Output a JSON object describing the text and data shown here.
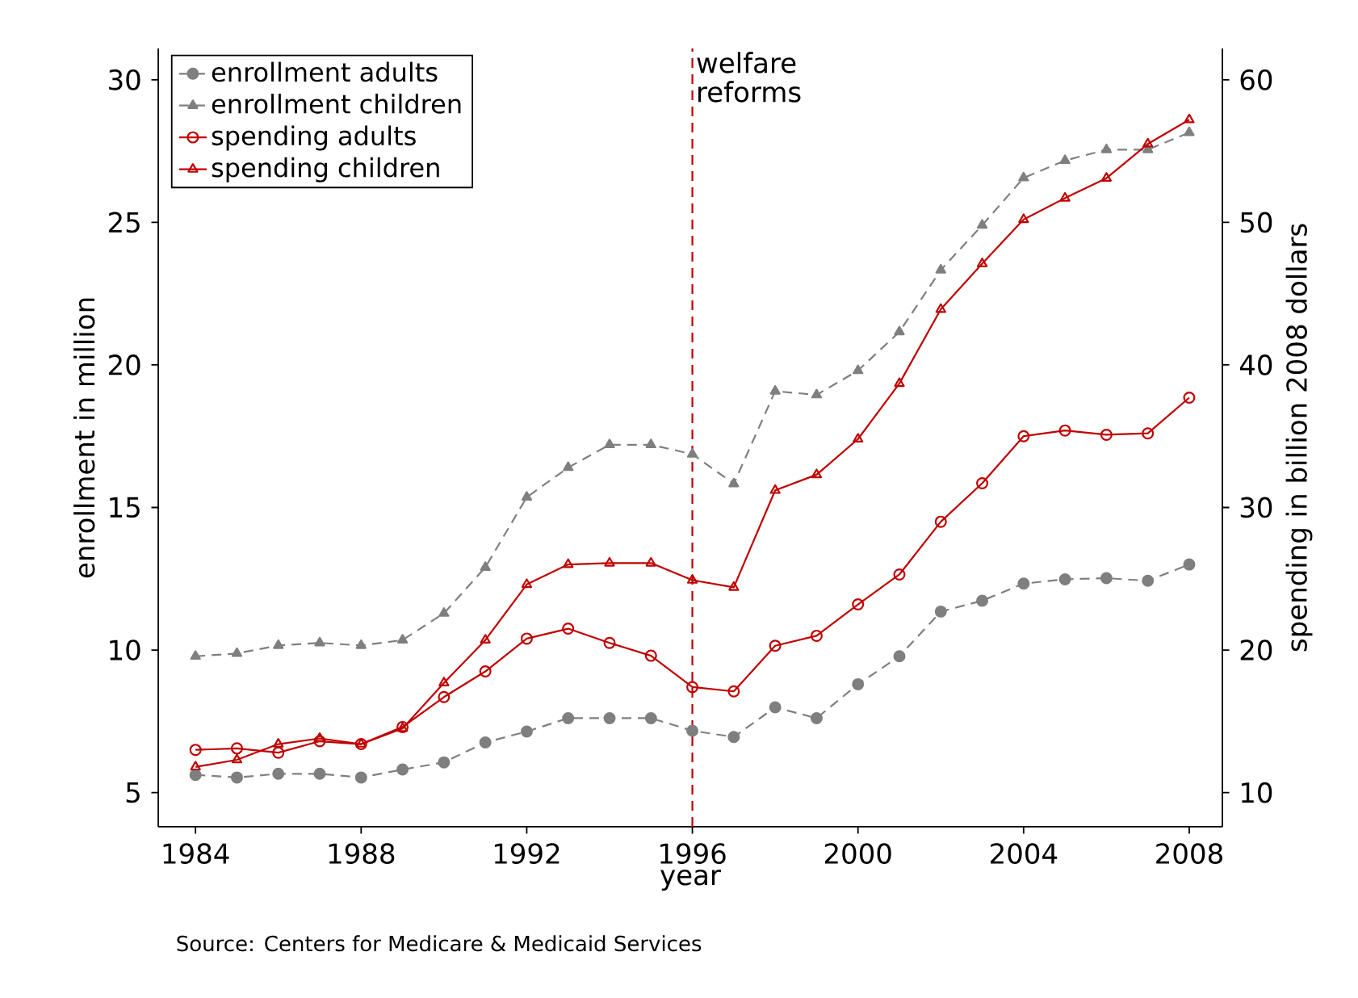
{
  "chart_data": {
    "type": "line",
    "xlabel": "year",
    "ylabel": "enrollment in million",
    "y2label": "spending in billion 2008 dollars",
    "x": [
      1984,
      1985,
      1986,
      1987,
      1988,
      1989,
      1990,
      1991,
      1992,
      1993,
      1994,
      1995,
      1996,
      1997,
      1998,
      1999,
      2000,
      2001,
      2002,
      2003,
      2004,
      2005,
      2006,
      2007,
      2008
    ],
    "series": [
      {
        "name": "enrollment adults",
        "color": "#7f7f7f",
        "marker": "circle",
        "line_style": "dashed",
        "values": [
          5.62,
          5.53,
          5.66,
          5.66,
          5.53,
          5.81,
          6.06,
          6.76,
          7.14,
          7.61,
          7.61,
          7.61,
          7.17,
          6.95,
          7.99,
          7.61,
          8.8,
          9.78,
          11.35,
          11.73,
          12.33,
          12.48,
          12.52,
          12.43,
          13.0
        ]
      },
      {
        "name": "enrollment children",
        "color": "#7f7f7f",
        "marker": "triangle",
        "line_style": "dashed",
        "values": [
          9.78,
          9.88,
          10.16,
          10.25,
          10.16,
          10.35,
          11.29,
          12.9,
          15.36,
          16.4,
          17.2,
          17.2,
          16.87,
          15.83,
          19.08,
          18.95,
          19.8,
          21.16,
          23.33,
          24.9,
          26.56,
          27.17,
          27.55,
          27.55,
          28.15
        ]
      },
      {
        "name": "spending adults",
        "color": "#c00000",
        "marker": "circle",
        "line_style": "solid",
        "axis": "y2",
        "values": [
          13.0,
          13.1,
          12.8,
          13.6,
          13.4,
          14.6,
          16.7,
          18.5,
          20.8,
          21.5,
          20.5,
          19.6,
          17.4,
          17.1,
          20.3,
          21.0,
          23.2,
          25.3,
          29.0,
          31.7,
          35.0,
          35.4,
          35.1,
          35.2,
          37.7
        ]
      },
      {
        "name": "spending children",
        "color": "#c00000",
        "marker": "triangle",
        "line_style": "solid",
        "axis": "y2",
        "values": [
          11.8,
          12.3,
          13.4,
          13.8,
          13.4,
          14.5,
          17.7,
          20.7,
          24.6,
          26.0,
          26.1,
          26.1,
          24.9,
          24.4,
          31.2,
          32.3,
          34.8,
          38.7,
          43.9,
          47.1,
          50.2,
          51.7,
          53.1,
          55.5,
          57.2
        ]
      }
    ],
    "xlim": [
      1983.1,
      2008.8
    ],
    "xticks": [
      1984,
      1988,
      1992,
      1996,
      2000,
      2004,
      2008
    ],
    "ylim": [
      3.8,
      31.1
    ],
    "yticks": [
      5,
      10,
      15,
      20,
      25,
      30
    ],
    "y2lim": [
      7.6,
      62.2
    ],
    "y2ticks": [
      10,
      20,
      30,
      40,
      50,
      60
    ],
    "ref_lines": [
      {
        "axis": "x",
        "value": 1996,
        "label": "welfare reforms",
        "color": "#c00000",
        "line_style": "dashed"
      }
    ],
    "legend": "top left",
    "annotations": [
      "Source: Centers for Medicare & Medicaid Services"
    ]
  }
}
